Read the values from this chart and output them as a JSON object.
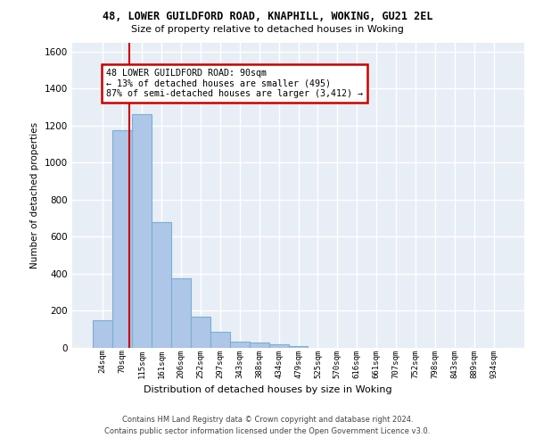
{
  "title1": "48, LOWER GUILDFORD ROAD, KNAPHILL, WOKING, GU21 2EL",
  "title2": "Size of property relative to detached houses in Woking",
  "xlabel": "Distribution of detached houses by size in Woking",
  "ylabel": "Number of detached properties",
  "bin_labels": [
    "24sqm",
    "70sqm",
    "115sqm",
    "161sqm",
    "206sqm",
    "252sqm",
    "297sqm",
    "343sqm",
    "388sqm",
    "434sqm",
    "479sqm",
    "525sqm",
    "570sqm",
    "616sqm",
    "661sqm",
    "707sqm",
    "752sqm",
    "798sqm",
    "843sqm",
    "889sqm",
    "934sqm"
  ],
  "bar_values": [
    150,
    1175,
    1260,
    680,
    375,
    170,
    85,
    35,
    28,
    20,
    12,
    0,
    0,
    0,
    0,
    0,
    0,
    0,
    0,
    0,
    0
  ],
  "bar_color": "#aec6e8",
  "bar_edge_color": "#7aafd4",
  "vline_x_idx": 1.35,
  "vline_color": "#cc0000",
  "annotation_text": "48 LOWER GUILDFORD ROAD: 90sqm\n← 13% of detached houses are smaller (495)\n87% of semi-detached houses are larger (3,412) →",
  "annotation_box_color": "#ffffff",
  "annotation_box_edge": "#cc0000",
  "ylim": [
    0,
    1650
  ],
  "yticks": [
    0,
    200,
    400,
    600,
    800,
    1000,
    1200,
    1400,
    1600
  ],
  "background_color": "#e8eef5",
  "grid_color": "#ffffff",
  "footer1": "Contains HM Land Registry data © Crown copyright and database right 2024.",
  "footer2": "Contains public sector information licensed under the Open Government Licence v3.0."
}
